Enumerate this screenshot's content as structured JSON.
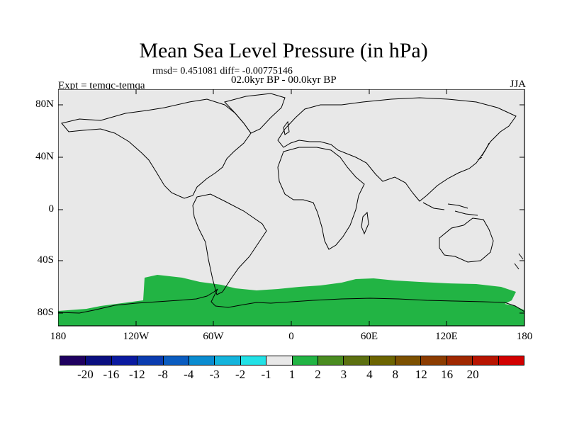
{
  "title": "Mean Sea Level Pressure (in hPa)",
  "stats": "rmsd= 0.451081 diff= -0.00775146",
  "period": "02.0kyr BP - 00.0kyr BP",
  "experiment": "Expt = temqc-temqa",
  "season": "JJA",
  "map": {
    "ocean_color": "#e8e8e8",
    "field_color": "#22b444",
    "field_region": "Southern Ocean / Antarctica, approx 55S-90S",
    "lat_labels": [
      "80N",
      "40N",
      "0",
      "40S",
      "80S"
    ],
    "lon_labels": [
      "180",
      "120W",
      "60W",
      "0",
      "60E",
      "120E",
      "180"
    ]
  },
  "colorbar": {
    "colors": [
      "#1f0060",
      "#0a0f80",
      "#0a1aa0",
      "#0a3cb0",
      "#0a5cc0",
      "#0a8cd0",
      "#14b4dc",
      "#22e1e6",
      "#e8e8e8",
      "#22b444",
      "#4a8c20",
      "#5c7010",
      "#6c6400",
      "#7c5000",
      "#8c3c00",
      "#a02800",
      "#b81400",
      "#d20000"
    ],
    "labels": [
      "-20",
      "-16",
      "-12",
      "-8",
      "-4",
      "-3",
      "-2",
      "-1",
      "1",
      "2",
      "3",
      "4",
      "8",
      "12",
      "16",
      "20"
    ]
  }
}
